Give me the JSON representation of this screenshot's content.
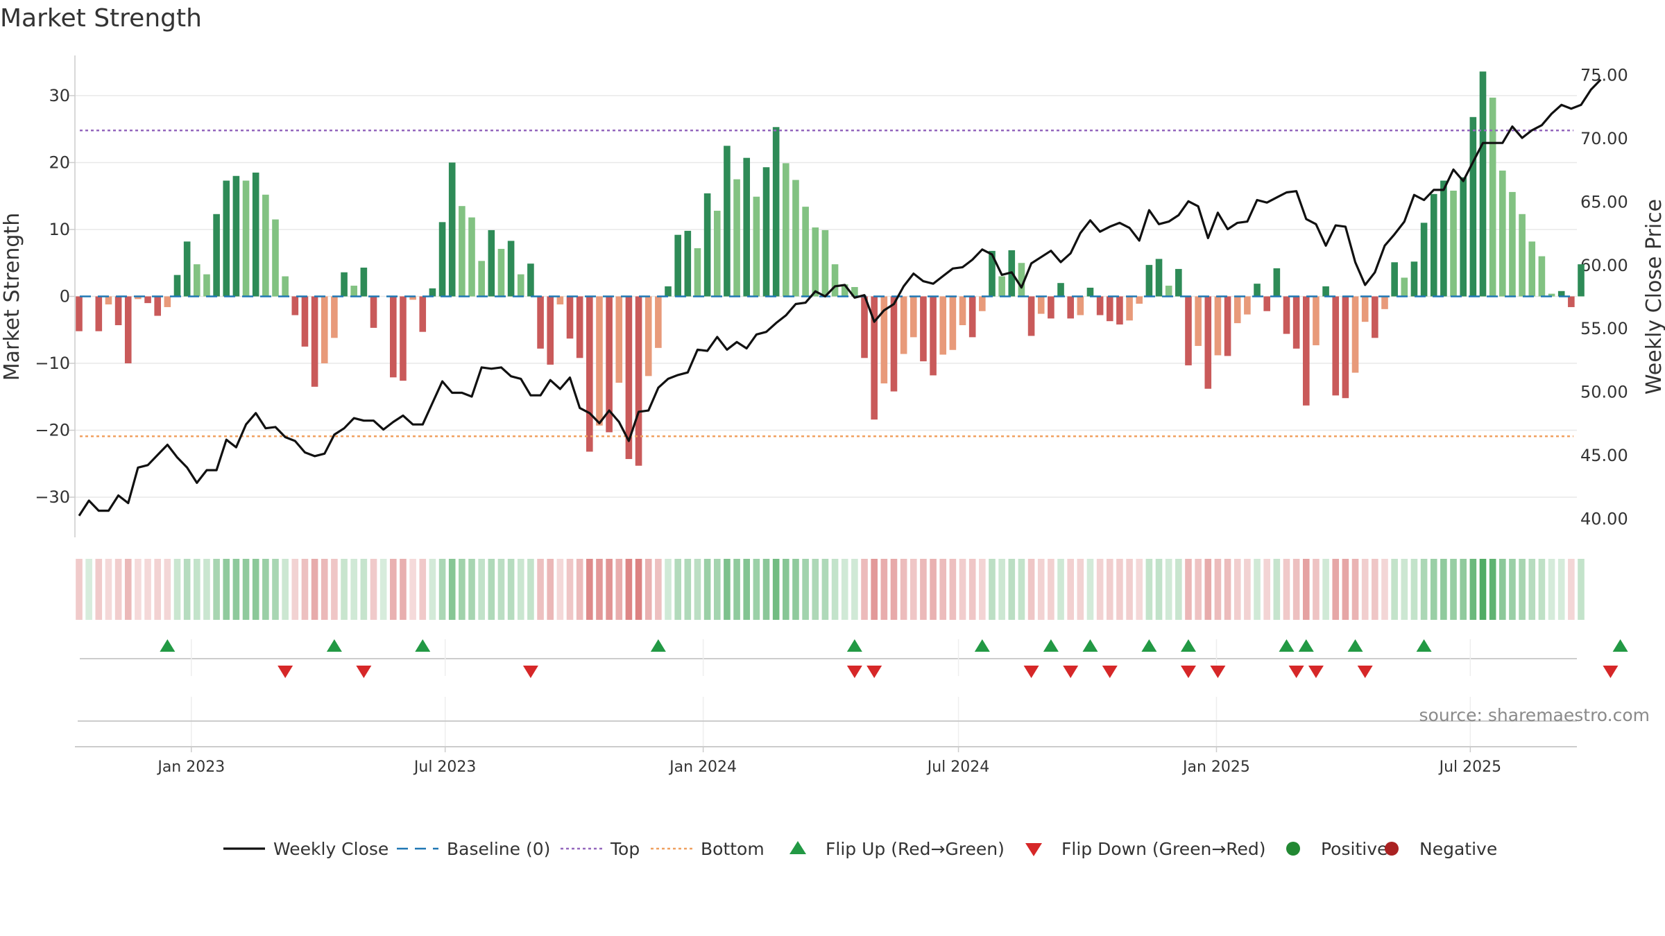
{
  "title": "Market Strength",
  "source_note": "source: sharemaestro.com",
  "legend": [
    {
      "label": "Weekly Close",
      "kind": "line",
      "color": "#111111"
    },
    {
      "label": "Baseline (0)",
      "kind": "dash",
      "color": "#1f77b4"
    },
    {
      "label": "Top",
      "kind": "dot",
      "color": "#9467bd"
    },
    {
      "label": "Bottom",
      "kind": "dot",
      "color": "#f0a060"
    },
    {
      "label": "Flip Up (Red→Green)",
      "kind": "tri-up",
      "color": "#229944"
    },
    {
      "label": "Flip Down (Green→Red)",
      "kind": "tri-down",
      "color": "#d62728"
    },
    {
      "label": "Positive",
      "kind": "circle",
      "color": "#228833"
    },
    {
      "label": "Negative",
      "kind": "circle",
      "color": "#aa2222"
    }
  ],
  "colors": {
    "strong_green": "#2e8b57",
    "light_green": "#82c282",
    "strong_red": "#c95a5a",
    "light_red": "#e89a7a",
    "top_line": "#9467bd",
    "bottom_line": "#f0a060",
    "baseline": "#1f77b4",
    "price_line": "#111111"
  },
  "chart_data": {
    "type": "bar",
    "title": "Market Strength",
    "ylabel": "Market Strength",
    "y2label": "Weekly Close Price",
    "ylim": [
      -36,
      36
    ],
    "y2lim": [
      38.5,
      76.5
    ],
    "yticks": [
      30,
      20,
      10,
      0,
      -10,
      -20,
      -30
    ],
    "ytick_labels": [
      "30",
      "20",
      "10",
      "0",
      "−10",
      "−20",
      "−30"
    ],
    "y2ticks": [
      75,
      70,
      65,
      60,
      55,
      50,
      45,
      40
    ],
    "y2tick_labels": [
      "75.00",
      "70.00",
      "65.00",
      "60.00",
      "55.00",
      "50.00",
      "45.00",
      "40.00"
    ],
    "top_level": 24.8,
    "bottom_level": -20.9,
    "x_start": "2022-10-10",
    "x_end": "2025-09-15",
    "xtick_dates": [
      "2023-01-01",
      "2023-07-01",
      "2024-01-01",
      "2024-07-01",
      "2025-01-01",
      "2025-07-01"
    ],
    "xtick_labels": [
      "Jan 2023",
      "Jul 2023",
      "Jan 2024",
      "Jul 2024",
      "Jan 2025",
      "Jul 2025"
    ],
    "first_week": "2022-10-10",
    "strength": [
      -5.2,
      0,
      -5.2,
      -1.2,
      -4.3,
      -10,
      -0.4,
      -1,
      -2.9,
      -1.6,
      3.2,
      8.2,
      4.8,
      3.3,
      12.3,
      17.3,
      18,
      17.3,
      18.5,
      15.2,
      11.5,
      3,
      -2.8,
      -7.5,
      -13.5,
      -10,
      -6.2,
      3.6,
      1.6,
      4.3,
      -4.7,
      0,
      -12.1,
      -12.6,
      -0.5,
      -5.3,
      1.2,
      11.1,
      20,
      13.5,
      11.8,
      5.3,
      9.9,
      7.1,
      8.3,
      3.3,
      4.9,
      -7.8,
      -10.2,
      -1.2,
      -6.3,
      -9.2,
      -23.2,
      -19.3,
      -20.3,
      -12.9,
      -24.3,
      -25.3,
      -11.9,
      -7.7,
      1.5,
      9.2,
      9.8,
      7.2,
      15.4,
      12.8,
      22.5,
      17.5,
      20.7,
      14.9,
      19.3,
      25.3,
      19.9,
      17.4,
      13.4,
      10.3,
      9.9,
      4.8,
      1.8,
      1.4,
      -9.2,
      -18.4,
      -13,
      -14.2,
      -8.6,
      -6.1,
      -9.7,
      -11.8,
      -8.7,
      -8,
      -4.3,
      -6.1,
      -2.2,
      6.8,
      3,
      6.9,
      5,
      -5.9,
      -2.6,
      -3.3,
      2,
      -3.3,
      -2.8,
      1.3,
      -2.8,
      -3.7,
      -4.2,
      -3.6,
      -1.1,
      4.7,
      5.6,
      1.6,
      4.1,
      -10.3,
      -7.4,
      -13.8,
      -8.8,
      -8.9,
      -4,
      -2.7,
      1.9,
      -2.2,
      4.2,
      -5.6,
      -7.8,
      -16.3,
      -7.3,
      1.5,
      -14.8,
      -15.2,
      -11.4,
      -3.8,
      -6.2,
      -1.9,
      5.1,
      2.8,
      5.2,
      11,
      15.3,
      17.3,
      15.8,
      17.8,
      26.8,
      33.6,
      29.7,
      18.8,
      15.6,
      12.3,
      8.2,
      6,
      0.4,
      0.8,
      -1.6,
      4.8
    ],
    "price": [
      40.2,
      41.4,
      40.6,
      40.6,
      41.8,
      41.2,
      44,
      44.2,
      45,
      45.8,
      44.8,
      44,
      42.8,
      43.8,
      43.8,
      46.2,
      45.6,
      47.4,
      48.3,
      47.1,
      47.2,
      46.4,
      46.1,
      45.2,
      44.9,
      45.1,
      46.6,
      47.1,
      47.9,
      47.7,
      47.7,
      47,
      47.6,
      48.1,
      47.4,
      47.4,
      49.1,
      50.8,
      49.9,
      49.9,
      49.6,
      51.9,
      51.8,
      51.9,
      51.2,
      51,
      49.7,
      49.7,
      50.9,
      50.2,
      51.1,
      48.7,
      48.3,
      47.5,
      48.5,
      47.6,
      46.1,
      48.4,
      48.5,
      50.3,
      51,
      51.3,
      51.5,
      53.3,
      53.2,
      54.3,
      53.3,
      53.9,
      53.4,
      54.5,
      54.7,
      55.4,
      56,
      56.9,
      57,
      57.9,
      57.5,
      58.3,
      58.4,
      57.4,
      57.6,
      55.5,
      56.4,
      56.9,
      58.3,
      59.3,
      58.7,
      58.5,
      59.1,
      59.7,
      59.8,
      60.4,
      61.2,
      60.8,
      59.2,
      59.4,
      58.2,
      60.1,
      60.6,
      61.1,
      60.2,
      60.9,
      62.5,
      63.5,
      62.6,
      63,
      63.3,
      62.9,
      61.9,
      64.3,
      63.2,
      63.4,
      63.9,
      65,
      64.6,
      62.1,
      64.1,
      62.8,
      63.3,
      63.4,
      65.1,
      64.9,
      65.3,
      65.7,
      65.8,
      63.6,
      63.2,
      61.5,
      63.1,
      63,
      60.2,
      58.4,
      59.4,
      61.5,
      62.4,
      63.4,
      65.5,
      65.1,
      65.9,
      65.9,
      67.5,
      66.6,
      68.1,
      69.6,
      69.6,
      69.6,
      70.9,
      70,
      70.6,
      71,
      71.9,
      72.6,
      72.3,
      72.6,
      73.8,
      74.6
    ],
    "flip_up_weeks": [
      9,
      26,
      35,
      59,
      79,
      92,
      99,
      103,
      109,
      113,
      123,
      125,
      130,
      137,
      157
    ],
    "flip_down_weeks": [
      21,
      29,
      46,
      79,
      81,
      97,
      101,
      105,
      113,
      116,
      124,
      126,
      131,
      156
    ]
  }
}
